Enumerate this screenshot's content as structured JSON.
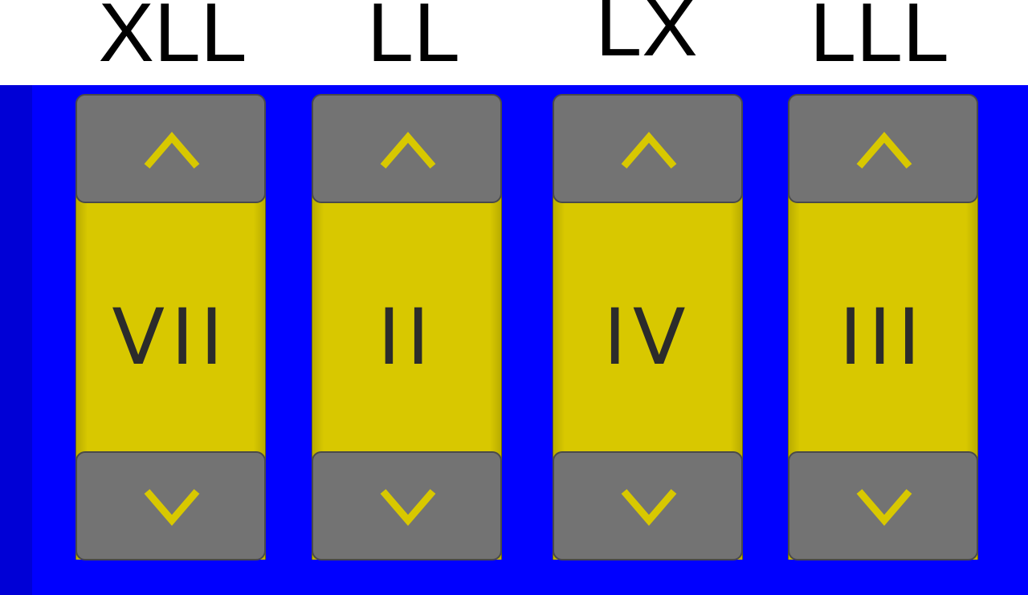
{
  "clues": [
    "XLL",
    "LL",
    "LX",
    "LLL"
  ],
  "wheels": [
    {
      "value": "VII",
      "up_icon": "chevron-up-icon",
      "down_icon": "chevron-down-icon"
    },
    {
      "value": "II",
      "up_icon": "chevron-up-icon",
      "down_icon": "chevron-down-icon"
    },
    {
      "value": "IV",
      "up_icon": "chevron-up-icon",
      "down_icon": "chevron-down-icon"
    },
    {
      "value": "III",
      "up_icon": "chevron-up-icon",
      "down_icon": "chevron-down-icon"
    }
  ],
  "colors": {
    "panel": "#0000ff",
    "wheel_face": "#d8c800",
    "button": "#737373",
    "arrow": "#d8c800",
    "numeral": "#2b2b2b"
  }
}
